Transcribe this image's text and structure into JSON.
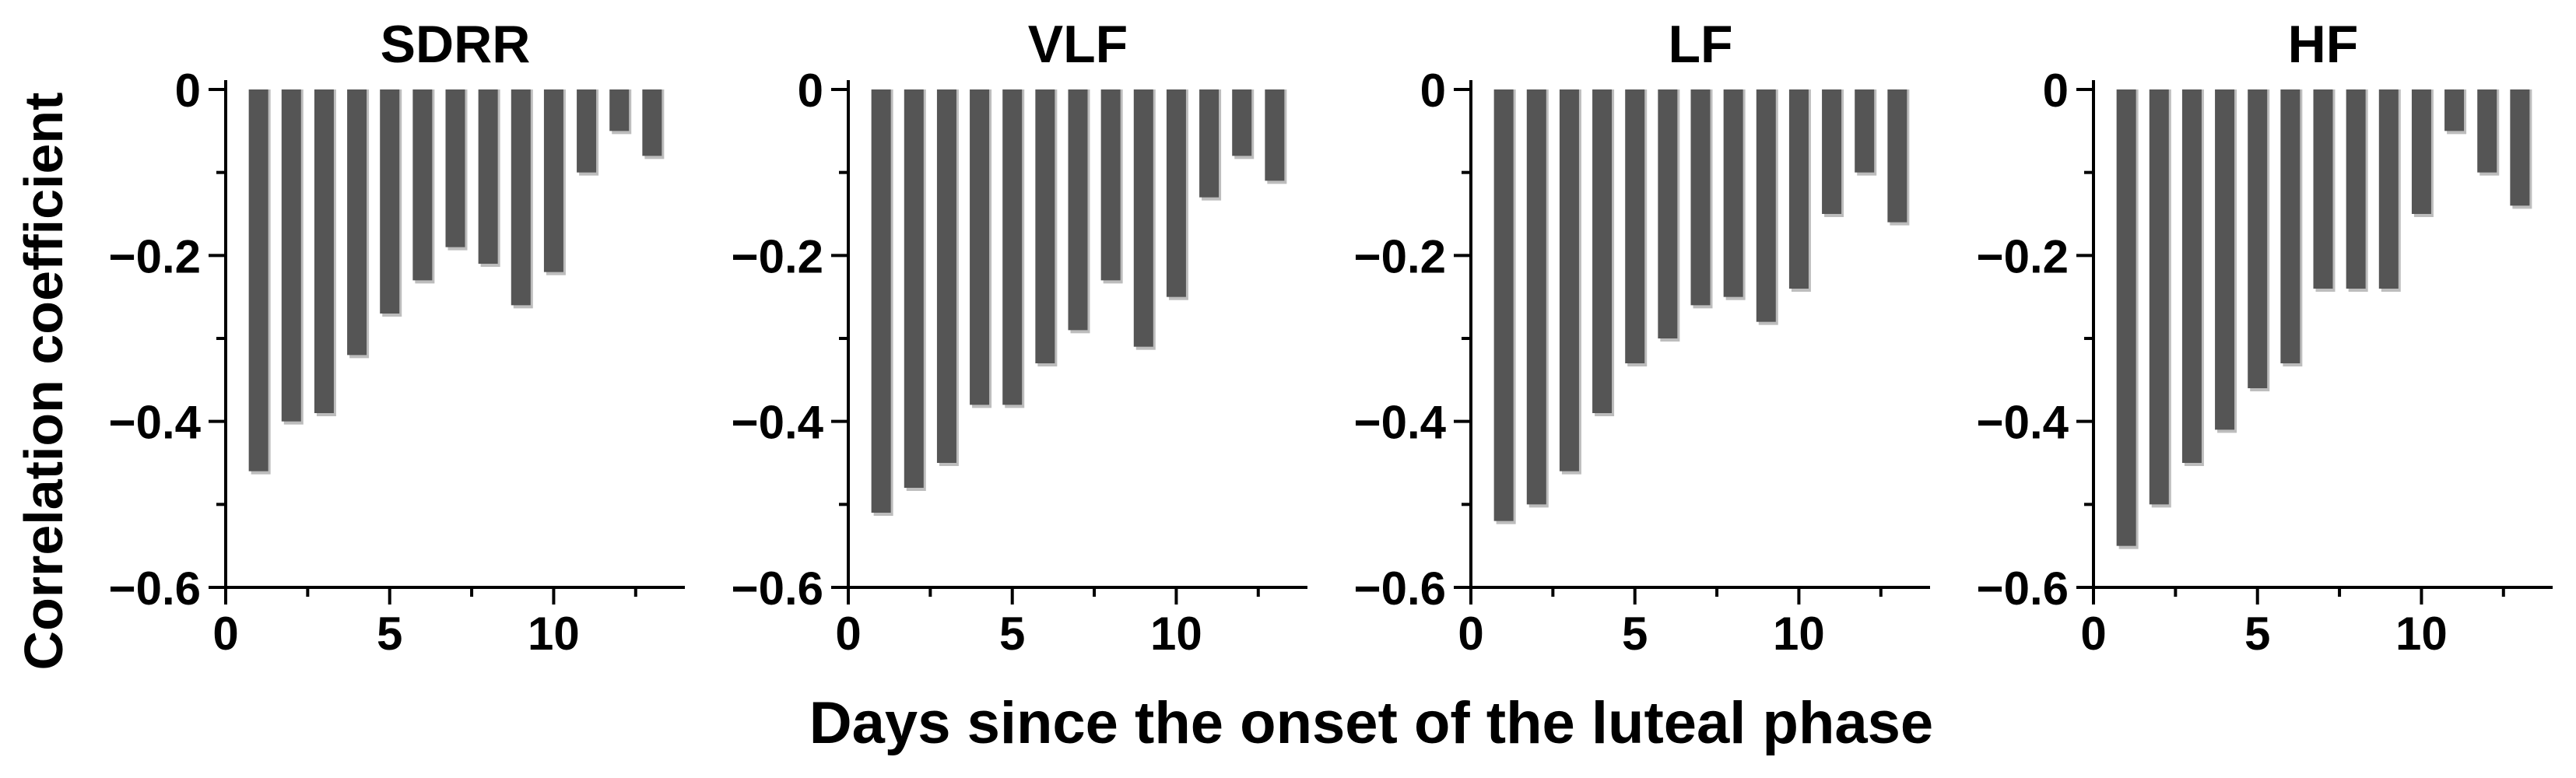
{
  "figure": {
    "ylabel": "Correlation coefficient",
    "xlabel": "Days since the onset of the luteal phase"
  },
  "chart_data": [
    {
      "type": "bar",
      "title": "SDRR",
      "x": [
        1,
        2,
        3,
        4,
        5,
        6,
        7,
        8,
        9,
        10,
        11,
        12,
        13
      ],
      "values": [
        -0.46,
        -0.4,
        -0.39,
        -0.32,
        -0.27,
        -0.23,
        -0.19,
        -0.21,
        -0.26,
        -0.22,
        -0.1,
        -0.05,
        -0.08
      ],
      "xlim": [
        0,
        14
      ],
      "ylim": [
        -0.6,
        0
      ],
      "xticks": [
        0,
        5,
        10
      ],
      "yticks": [
        0,
        -0.2,
        -0.4,
        -0.6
      ],
      "ytick_labels": [
        "0",
        "−0.2",
        "−0.4",
        "−0.6"
      ],
      "grid": false
    },
    {
      "type": "bar",
      "title": "VLF",
      "x": [
        1,
        2,
        3,
        4,
        5,
        6,
        7,
        8,
        9,
        10,
        11,
        12,
        13
      ],
      "values": [
        -0.51,
        -0.48,
        -0.45,
        -0.38,
        -0.38,
        -0.33,
        -0.29,
        -0.23,
        -0.31,
        -0.25,
        -0.13,
        -0.08,
        -0.11
      ],
      "xlim": [
        0,
        14
      ],
      "ylim": [
        -0.6,
        0
      ],
      "xticks": [
        0,
        5,
        10
      ],
      "yticks": [
        0,
        -0.2,
        -0.4,
        -0.6
      ],
      "ytick_labels": [
        "0",
        "−0.2",
        "−0.4",
        "−0.6"
      ],
      "grid": false
    },
    {
      "type": "bar",
      "title": "LF",
      "x": [
        1,
        2,
        3,
        4,
        5,
        6,
        7,
        8,
        9,
        10,
        11,
        12,
        13
      ],
      "values": [
        -0.52,
        -0.5,
        -0.46,
        -0.39,
        -0.33,
        -0.3,
        -0.26,
        -0.25,
        -0.28,
        -0.24,
        -0.15,
        -0.1,
        -0.16
      ],
      "xlim": [
        0,
        14
      ],
      "ylim": [
        -0.6,
        0
      ],
      "xticks": [
        0,
        5,
        10
      ],
      "yticks": [
        0,
        -0.2,
        -0.4,
        -0.6
      ],
      "ytick_labels": [
        "0",
        "−0.2",
        "−0.4",
        "−0.6"
      ],
      "grid": false
    },
    {
      "type": "bar",
      "title": "HF",
      "x": [
        1,
        2,
        3,
        4,
        5,
        6,
        7,
        8,
        9,
        10,
        11,
        12,
        13
      ],
      "values": [
        -0.55,
        -0.5,
        -0.45,
        -0.41,
        -0.36,
        -0.33,
        -0.24,
        -0.24,
        -0.24,
        -0.15,
        -0.05,
        -0.1,
        -0.14
      ],
      "xlim": [
        0,
        14
      ],
      "ylim": [
        -0.6,
        0
      ],
      "xticks": [
        0,
        5,
        10
      ],
      "yticks": [
        0,
        -0.2,
        -0.4,
        -0.6
      ],
      "ytick_labels": [
        "0",
        "−0.2",
        "−0.4",
        "−0.6"
      ],
      "grid": false
    }
  ],
  "colors": {
    "bar": "#555555",
    "bar_shadow": "#bdbdbd",
    "axis": "#000000"
  }
}
